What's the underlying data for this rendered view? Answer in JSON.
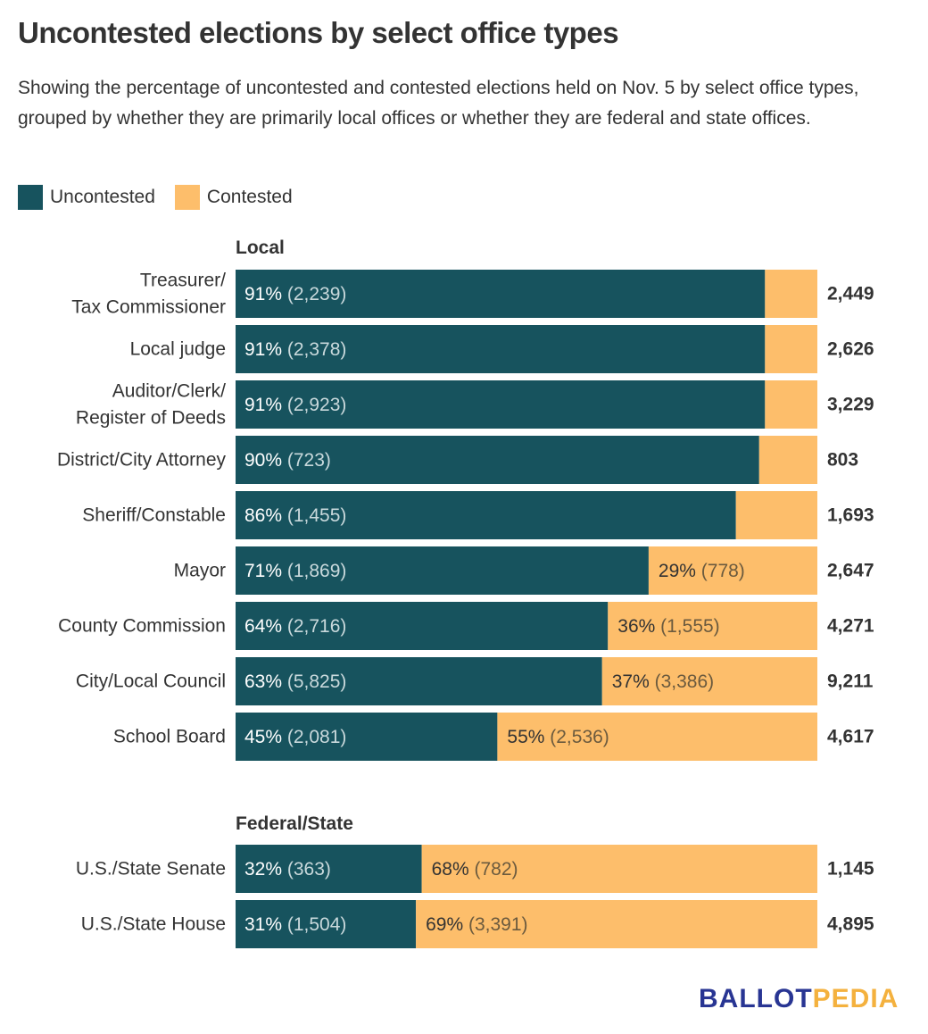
{
  "title": "Uncontested elections by select office types",
  "subtitle": "Showing the percentage of uncontested and contested elections held on Nov. 5 by select office types, grouped by whether they are primarily local offices or whether they are federal and state offices.",
  "legend": [
    {
      "label": "Uncontested",
      "color": "#17535e"
    },
    {
      "label": "Contested",
      "color": "#fdbe6b"
    }
  ],
  "colors": {
    "uncontested": "#17535e",
    "contested": "#fdbe6b",
    "text": "#333333"
  },
  "logo": {
    "part1": "BALLOT",
    "part2": "PEDIA"
  },
  "chart_data": {
    "type": "bar",
    "orientation": "horizontal",
    "stacked": true,
    "title": "Uncontested elections by select office types",
    "xlim": [
      0,
      100
    ],
    "grid": false,
    "legend_position": "top-left",
    "series_names": [
      "Uncontested",
      "Contested"
    ],
    "groups": [
      {
        "name": "Local",
        "rows": [
          {
            "label": "Treasurer/\nTax Commissioner",
            "uncontested_pct": 91,
            "uncontested": 2239,
            "contested_pct": 9,
            "contested": 210,
            "total": "2,449",
            "u_label": "91%",
            "u_count": "(2,239)",
            "c_label": "",
            "c_count": ""
          },
          {
            "label": "Local judge",
            "uncontested_pct": 91,
            "uncontested": 2378,
            "contested_pct": 9,
            "contested": 248,
            "total": "2,626",
            "u_label": "91%",
            "u_count": "(2,378)",
            "c_label": "",
            "c_count": ""
          },
          {
            "label": "Auditor/Clerk/\nRegister of Deeds",
            "uncontested_pct": 91,
            "uncontested": 2923,
            "contested_pct": 9,
            "contested": 306,
            "total": "3,229",
            "u_label": "91%",
            "u_count": "(2,923)",
            "c_label": "",
            "c_count": ""
          },
          {
            "label": "District/City Attorney",
            "uncontested_pct": 90,
            "uncontested": 723,
            "contested_pct": 10,
            "contested": 80,
            "total": "803",
            "u_label": "90%",
            "u_count": "(723)",
            "c_label": "",
            "c_count": ""
          },
          {
            "label": "Sheriff/Constable",
            "uncontested_pct": 86,
            "uncontested": 1455,
            "contested_pct": 14,
            "contested": 238,
            "total": "1,693",
            "u_label": "86%",
            "u_count": "(1,455)",
            "c_label": "",
            "c_count": ""
          },
          {
            "label": "Mayor",
            "uncontested_pct": 71,
            "uncontested": 1869,
            "contested_pct": 29,
            "contested": 778,
            "total": "2,647",
            "u_label": "71%",
            "u_count": "(1,869)",
            "c_label": "29%",
            "c_count": "(778)"
          },
          {
            "label": "County Commission",
            "uncontested_pct": 64,
            "uncontested": 2716,
            "contested_pct": 36,
            "contested": 1555,
            "total": "4,271",
            "u_label": "64%",
            "u_count": "(2,716)",
            "c_label": "36%",
            "c_count": "(1,555)"
          },
          {
            "label": "City/Local Council",
            "uncontested_pct": 63,
            "uncontested": 5825,
            "contested_pct": 37,
            "contested": 3386,
            "total": "9,211",
            "u_label": "63%",
            "u_count": "(5,825)",
            "c_label": "37%",
            "c_count": "(3,386)"
          },
          {
            "label": "School Board",
            "uncontested_pct": 45,
            "uncontested": 2081,
            "contested_pct": 55,
            "contested": 2536,
            "total": "4,617",
            "u_label": "45%",
            "u_count": "(2,081)",
            "c_label": "55%",
            "c_count": "(2,536)"
          }
        ]
      },
      {
        "name": "Federal/State",
        "rows": [
          {
            "label": "U.S./State Senate",
            "uncontested_pct": 32,
            "uncontested": 363,
            "contested_pct": 68,
            "contested": 782,
            "total": "1,145",
            "u_label": "32%",
            "u_count": "(363)",
            "c_label": "68%",
            "c_count": "(782)"
          },
          {
            "label": "U.S./State House",
            "uncontested_pct": 31,
            "uncontested": 1504,
            "contested_pct": 69,
            "contested": 3391,
            "total": "4,895",
            "u_label": "31%",
            "u_count": "(1,504)",
            "c_label": "69%",
            "c_count": "(3,391)"
          }
        ]
      }
    ]
  }
}
